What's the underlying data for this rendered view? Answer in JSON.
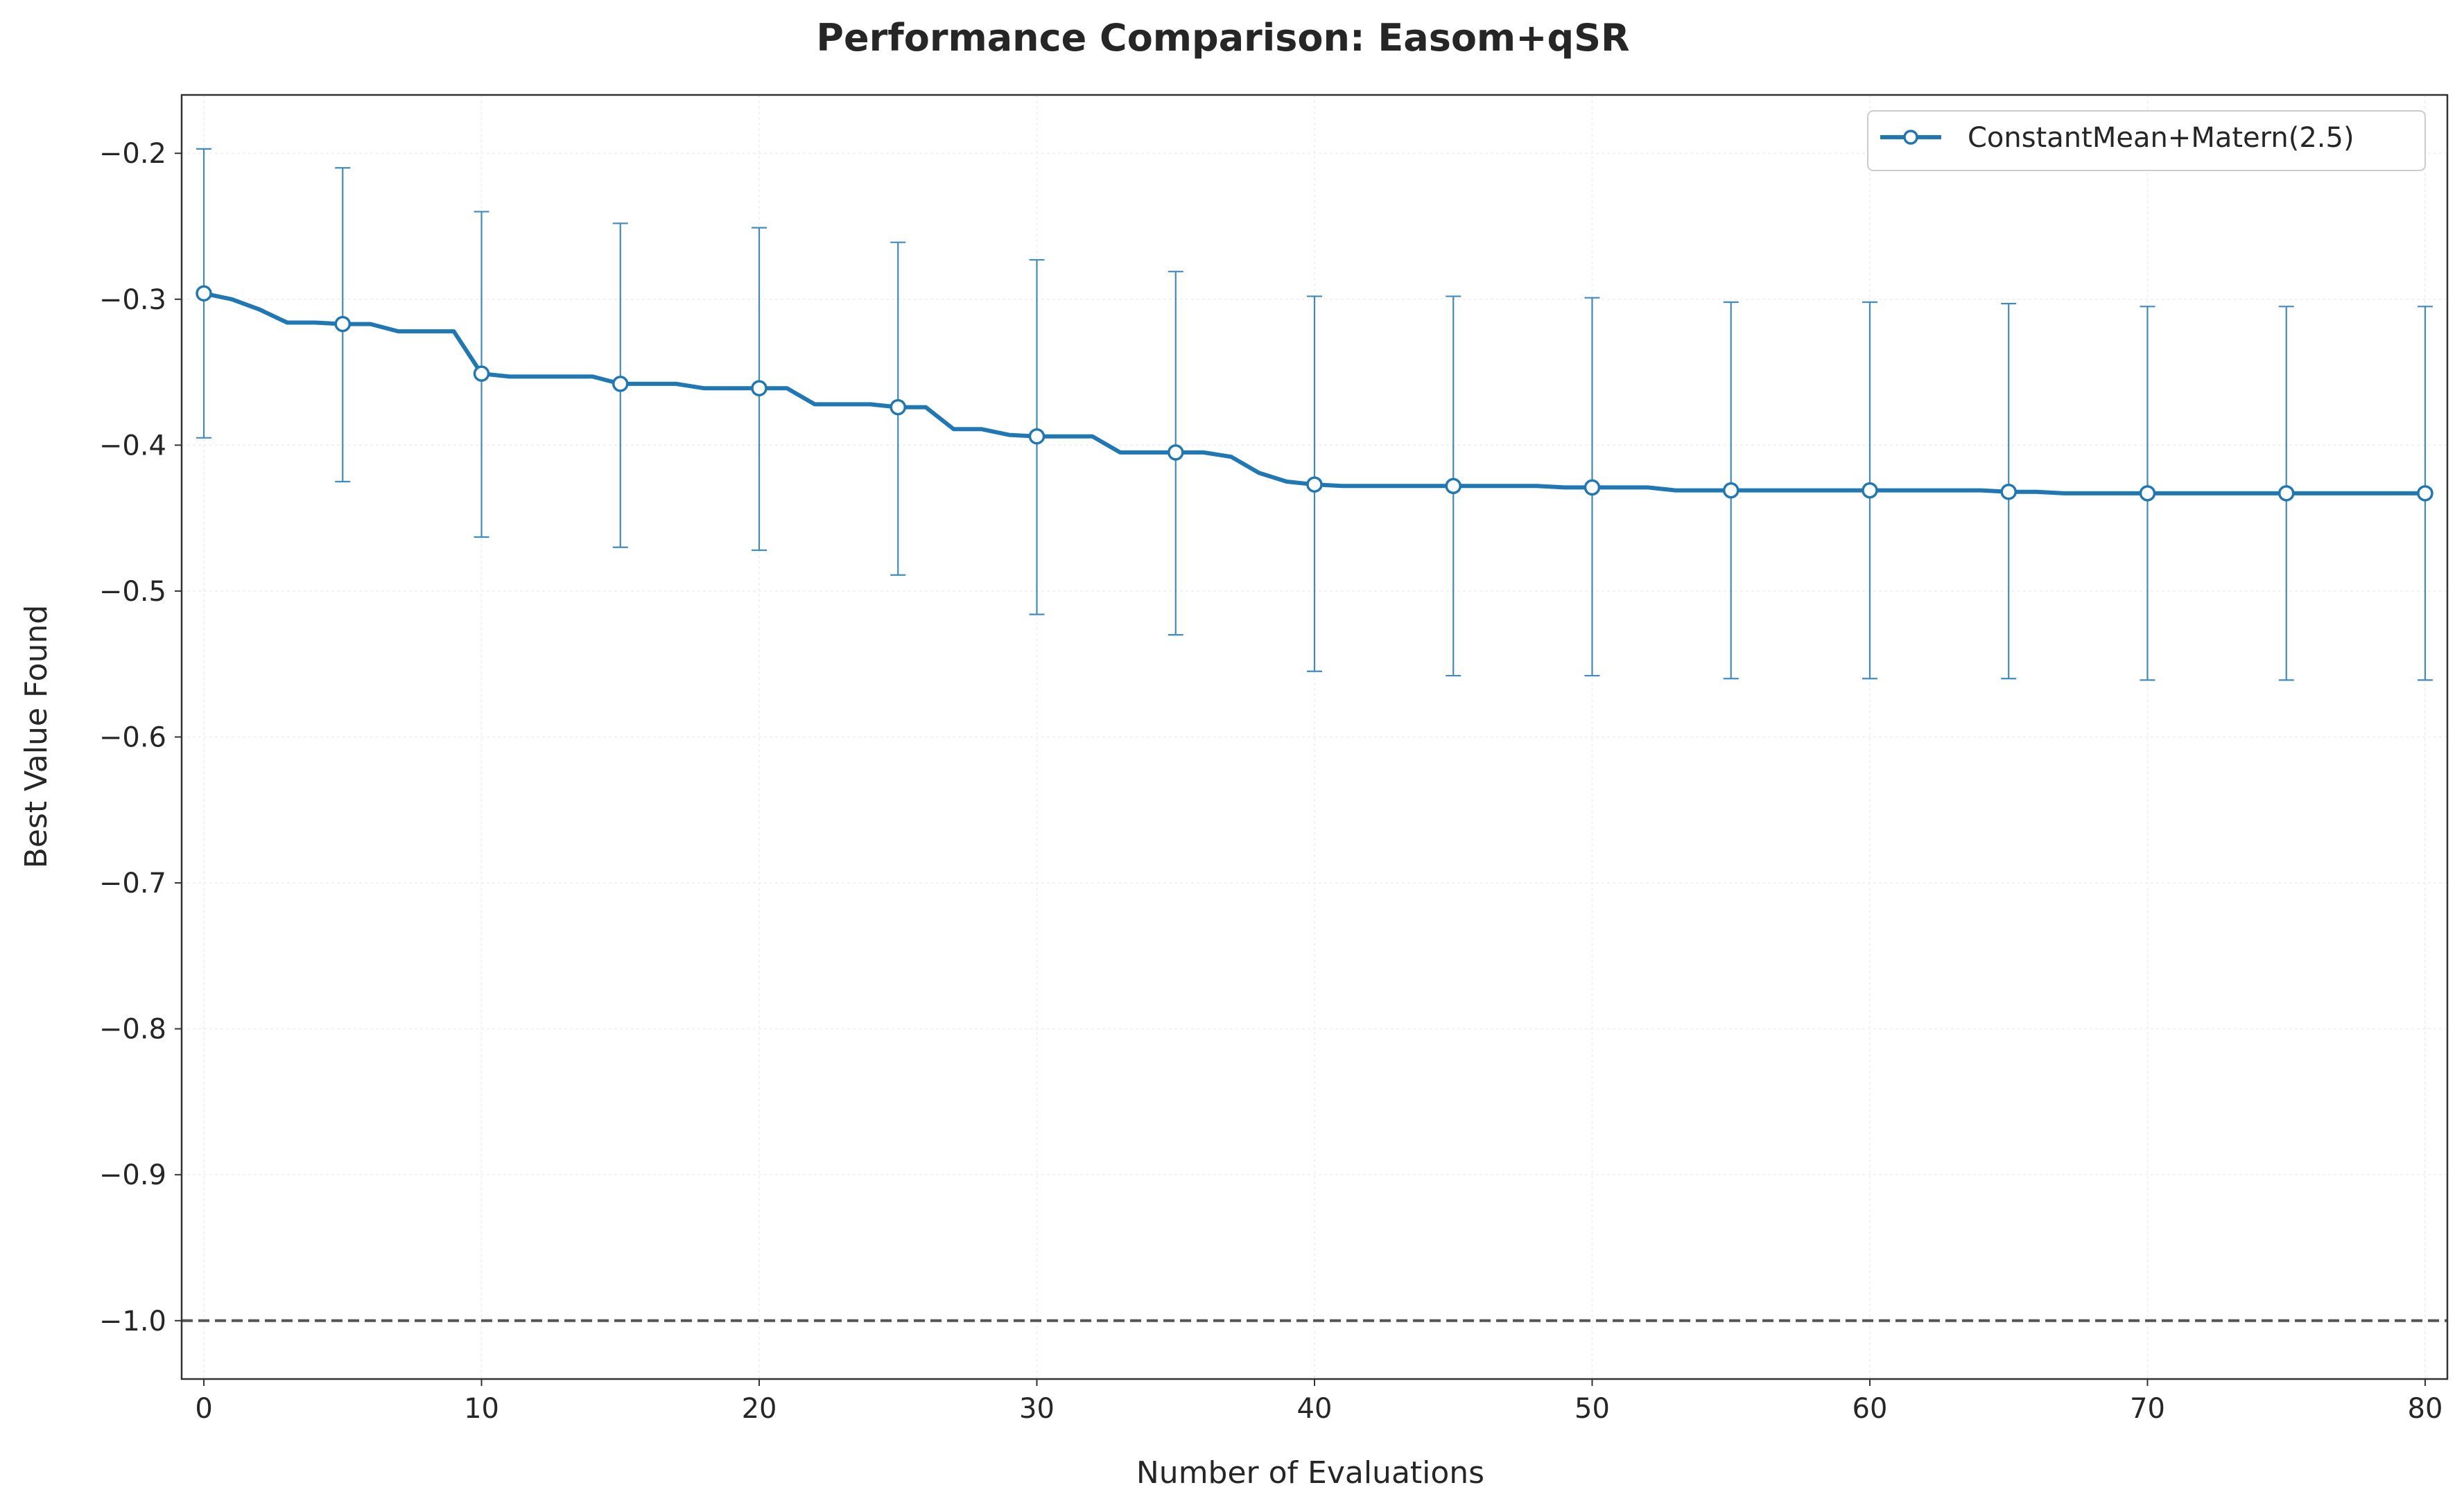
{
  "chart_data": {
    "type": "line",
    "title": "Performance Comparison: Easom+qSR",
    "xlabel": "Number of Evaluations",
    "ylabel": "Best Value Found",
    "xlim": [
      -0.8,
      80.8
    ],
    "ylim": [
      -1.04,
      -0.16
    ],
    "xticks": [
      0,
      10,
      20,
      30,
      40,
      50,
      60,
      70,
      80
    ],
    "xtick_labels": [
      "0",
      "10",
      "20",
      "30",
      "40",
      "50",
      "60",
      "70",
      "80"
    ],
    "yticks": [
      -0.2,
      -0.3,
      -0.4,
      -0.5,
      -0.6,
      -0.7,
      -0.8,
      -0.9,
      -1.0
    ],
    "ytick_labels": [
      "−0.2",
      "−0.3",
      "−0.4",
      "−0.5",
      "−0.6",
      "−0.7",
      "−0.8",
      "−0.9",
      "−1.0"
    ],
    "grid": true,
    "legend_position": "top-right",
    "reference_line": {
      "y": -1.0,
      "style": "dashed",
      "color": "#555555"
    },
    "series": [
      {
        "name": "ConstantMean+Matern(2.5)",
        "color": "#1f77b4",
        "marker": "circle-open",
        "x": [
          0,
          1,
          2,
          3,
          4,
          5,
          6,
          7,
          8,
          9,
          10,
          11,
          12,
          13,
          14,
          15,
          16,
          17,
          18,
          19,
          20,
          21,
          22,
          23,
          24,
          25,
          26,
          27,
          28,
          29,
          30,
          31,
          32,
          33,
          34,
          35,
          36,
          37,
          38,
          39,
          40,
          41,
          42,
          43,
          44,
          45,
          46,
          47,
          48,
          49,
          50,
          51,
          52,
          53,
          54,
          55,
          56,
          57,
          58,
          59,
          60,
          61,
          62,
          63,
          64,
          65,
          66,
          67,
          68,
          69,
          70,
          71,
          72,
          73,
          74,
          75,
          76,
          77,
          78,
          79,
          80
        ],
        "y": [
          -0.296,
          -0.3,
          -0.307,
          -0.316,
          -0.316,
          -0.317,
          -0.317,
          -0.322,
          -0.322,
          -0.322,
          -0.351,
          -0.353,
          -0.353,
          -0.353,
          -0.353,
          -0.358,
          -0.358,
          -0.358,
          -0.361,
          -0.361,
          -0.361,
          -0.361,
          -0.372,
          -0.372,
          -0.372,
          -0.374,
          -0.374,
          -0.389,
          -0.389,
          -0.393,
          -0.394,
          -0.394,
          -0.394,
          -0.405,
          -0.405,
          -0.405,
          -0.405,
          -0.408,
          -0.419,
          -0.425,
          -0.427,
          -0.428,
          -0.428,
          -0.428,
          -0.428,
          -0.428,
          -0.428,
          -0.428,
          -0.428,
          -0.429,
          -0.429,
          -0.429,
          -0.429,
          -0.431,
          -0.431,
          -0.431,
          -0.431,
          -0.431,
          -0.431,
          -0.431,
          -0.431,
          -0.431,
          -0.431,
          -0.431,
          -0.431,
          -0.432,
          -0.432,
          -0.433,
          -0.433,
          -0.433,
          -0.433,
          -0.433,
          -0.433,
          -0.433,
          -0.433,
          -0.433,
          -0.433,
          -0.433,
          -0.433,
          -0.433,
          -0.433
        ],
        "errorbar_x": [
          0,
          5,
          10,
          15,
          20,
          25,
          30,
          35,
          40,
          45,
          50,
          55,
          60,
          65,
          70,
          75,
          80
        ],
        "errorbar_low": [
          -0.395,
          -0.425,
          -0.463,
          -0.47,
          -0.472,
          -0.489,
          -0.516,
          -0.53,
          -0.555,
          -0.558,
          -0.558,
          -0.56,
          -0.56,
          -0.56,
          -0.561,
          -0.561,
          -0.561
        ],
        "errorbar_high": [
          -0.197,
          -0.21,
          -0.24,
          -0.248,
          -0.251,
          -0.261,
          -0.273,
          -0.281,
          -0.298,
          -0.298,
          -0.299,
          -0.302,
          -0.302,
          -0.303,
          -0.305,
          -0.305,
          -0.305
        ]
      }
    ]
  }
}
